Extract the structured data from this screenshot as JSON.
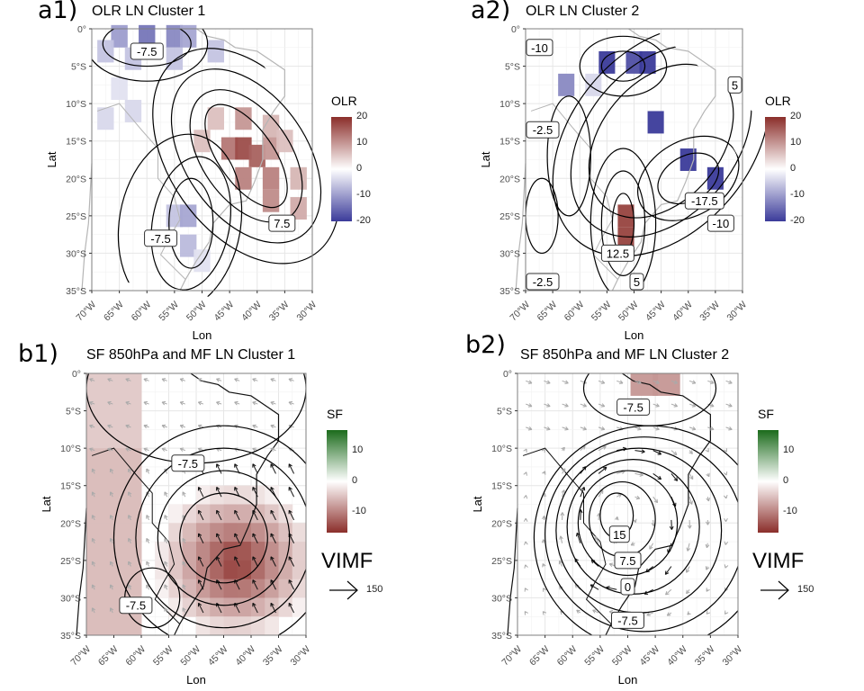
{
  "panels": [
    {
      "id": "a1",
      "tag": "a1)",
      "title": "OLR LN Cluster 1",
      "kind": "olr",
      "legend": {
        "title": "OLR",
        "ticks": [
          "20",
          "10",
          "0",
          "-10",
          "-20"
        ],
        "low": "#3b3b9a",
        "high": "#8b2e2a"
      },
      "contour_labels": [
        {
          "text": "-7.5",
          "lon": -60,
          "lat": -3
        },
        {
          "text": "7.5",
          "lon": -35.5,
          "lat": -26
        },
        {
          "text": "-7.5",
          "lon": -57.5,
          "lat": -28
        }
      ],
      "tiles": [
        [
          -65,
          -1,
          -10
        ],
        [
          -60,
          -1,
          -14
        ],
        [
          -55,
          -1,
          -12
        ],
        [
          -52.5,
          -1,
          -9
        ],
        [
          -67.5,
          -3,
          -6
        ],
        [
          -62.5,
          -4,
          -6
        ],
        [
          -55,
          -4,
          -6
        ],
        [
          -47.5,
          -3,
          -6
        ],
        [
          -65,
          -8,
          -3
        ],
        [
          -62.5,
          -11,
          -4
        ],
        [
          -67.5,
          -12,
          -4
        ],
        [
          -55,
          -25,
          -6
        ],
        [
          -52.5,
          -25,
          -9
        ],
        [
          -52.5,
          -29,
          -7
        ],
        [
          -50,
          -31,
          -3
        ],
        [
          -47.5,
          -12,
          6
        ],
        [
          -42.5,
          -12,
          10
        ],
        [
          -37.5,
          -13,
          7
        ],
        [
          -45,
          -16,
          13
        ],
        [
          -42.5,
          -16,
          17
        ],
        [
          -40,
          -17,
          15
        ],
        [
          -37.5,
          -16,
          10
        ],
        [
          -35,
          -15,
          6
        ],
        [
          -42.5,
          -20,
          12
        ],
        [
          -37.5,
          -20,
          12
        ],
        [
          -32.5,
          -20,
          7
        ],
        [
          -37.5,
          -23,
          11
        ],
        [
          -32.5,
          -24,
          8
        ],
        [
          -50,
          -15,
          6
        ]
      ],
      "contours": [
        [
          -60,
          -2,
          8,
          3,
          0
        ],
        [
          -60,
          -2,
          11,
          5,
          0
        ],
        [
          -42,
          -17,
          5,
          8,
          -35
        ],
        [
          -42,
          -17,
          8,
          10,
          -35
        ],
        [
          -42,
          -17,
          11,
          13,
          -35
        ],
        [
          -42,
          -17,
          14,
          16,
          -35
        ],
        [
          -52,
          -26,
          4,
          6,
          0
        ],
        [
          -52,
          -26,
          7,
          9,
          10
        ],
        [
          -54,
          -26,
          11,
          12,
          10
        ]
      ]
    },
    {
      "id": "a2",
      "tag": "a2)",
      "title": "OLR LN Cluster 2",
      "kind": "olr",
      "legend": {
        "title": "OLR",
        "ticks": [
          "20",
          "10",
          "0",
          "-10",
          "-20"
        ],
        "low": "#3b3b9a",
        "high": "#8b2e2a"
      },
      "contour_labels": [
        {
          "text": "-10",
          "lon": -68,
          "lat": -2.5
        },
        {
          "text": "5",
          "lon": -30.5,
          "lat": -7.5
        },
        {
          "text": "-2.5",
          "lon": -67.5,
          "lat": -13.5
        },
        {
          "text": "-17.5",
          "lon": -37,
          "lat": -23
        },
        {
          "text": "-10",
          "lon": -34,
          "lat": -26
        },
        {
          "text": "12.5",
          "lon": -53,
          "lat": -30
        },
        {
          "text": "-2.5",
          "lon": -68,
          "lat": -34
        },
        {
          "text": "5",
          "lon": -49.5,
          "lat": -35
        }
      ],
      "tiles": [
        [
          -55,
          -4.5,
          -20
        ],
        [
          -50,
          -4.5,
          -18
        ],
        [
          -47.5,
          -4.5,
          -20
        ],
        [
          -62.5,
          -7.5,
          -12
        ],
        [
          -57.5,
          -7.5,
          -4
        ],
        [
          -46,
          -12.5,
          -20
        ],
        [
          -40,
          -17.5,
          -20
        ],
        [
          -35,
          -20,
          -20
        ],
        [
          -51.5,
          -25,
          18
        ],
        [
          -51.5,
          -28,
          18
        ]
      ],
      "contours": [
        [
          -52,
          -5,
          4,
          2,
          0
        ],
        [
          -52,
          -5,
          8,
          4,
          0
        ],
        [
          -52,
          -26,
          2,
          4,
          0
        ],
        [
          -52,
          -26,
          4,
          7,
          0
        ],
        [
          -52,
          -26,
          6,
          10,
          0
        ],
        [
          -40,
          -20,
          6,
          3,
          -30
        ],
        [
          -40,
          -20,
          10,
          5,
          -30
        ],
        [
          -45,
          -15,
          16,
          8,
          -50
        ],
        [
          -45,
          -15,
          20,
          10,
          -50
        ],
        [
          -45,
          -15,
          24,
          12,
          -50
        ],
        [
          -62,
          -17,
          4,
          8,
          0
        ],
        [
          -67,
          -25,
          3,
          5,
          0
        ]
      ]
    },
    {
      "id": "b1",
      "tag": "b1)",
      "title": "SF 850hPa and MF LN Cluster 1",
      "kind": "sf",
      "legend": {
        "title": "SF",
        "ticks": [
          "10",
          "0",
          "-10"
        ],
        "low": "#8b2e2a",
        "high": "#1b6b1b",
        "vimf": "VIMF",
        "vimf_value": "150"
      },
      "contour_labels": [
        {
          "text": "-7.5",
          "lon": -51.5,
          "lat": -12
        },
        {
          "text": "-7.5",
          "lon": -61,
          "lat": -31
        }
      ],
      "tiles": [],
      "contours": [
        [
          -45,
          -22,
          8,
          6,
          0
        ],
        [
          -45,
          -22,
          12,
          9,
          0
        ],
        [
          -45,
          -22,
          16,
          12,
          0
        ],
        [
          -45,
          -22,
          20,
          15,
          0
        ],
        [
          -58,
          -30,
          5,
          4,
          0
        ],
        [
          -50,
          -2,
          20,
          10,
          0
        ]
      ]
    },
    {
      "id": "b2",
      "tag": "b2)",
      "title": "SF 850hPa and MF LN Cluster 2",
      "kind": "sf",
      "legend": {
        "title": "SF",
        "ticks": [
          "10",
          "0",
          "-10"
        ],
        "low": "#8b2e2a",
        "high": "#1b6b1b",
        "vimf": "VIMF",
        "vimf_value": "150"
      },
      "contour_labels": [
        {
          "text": "-7.5",
          "lon": -49,
          "lat": -4.5
        },
        {
          "text": "15",
          "lon": -51.5,
          "lat": -21.5
        },
        {
          "text": "7.5",
          "lon": -50,
          "lat": -25
        },
        {
          "text": "0",
          "lon": -50,
          "lat": -28.5
        },
        {
          "text": "-7.5",
          "lon": -50,
          "lat": -33
        }
      ],
      "tiles": [
        [
          -48,
          -1.5,
          -8
        ],
        [
          -44,
          -1.5,
          -8
        ]
      ],
      "contours": [
        [
          -52,
          -19,
          3,
          3,
          0
        ],
        [
          -51,
          -19.5,
          6,
          5,
          0
        ],
        [
          -50,
          -20,
          9,
          7,
          0
        ],
        [
          -49,
          -20.5,
          12,
          9,
          0
        ],
        [
          -48,
          -21,
          15,
          11,
          0
        ],
        [
          -47,
          -21.5,
          18,
          13,
          0
        ],
        [
          -46,
          -22,
          21,
          15,
          0
        ],
        [
          -46,
          -2,
          12,
          5,
          0
        ]
      ]
    }
  ],
  "axes": {
    "xlabel": "Lon",
    "ylabel": "Lat",
    "xticks": [
      "70°W",
      "65°W",
      "60°W",
      "55°W",
      "50°W",
      "45°W",
      "40°W",
      "35°W",
      "30°W"
    ],
    "yticks": [
      "0°",
      "5°S",
      "10°S",
      "15°S",
      "20°S",
      "25°S",
      "30°S",
      "35°S"
    ]
  }
}
